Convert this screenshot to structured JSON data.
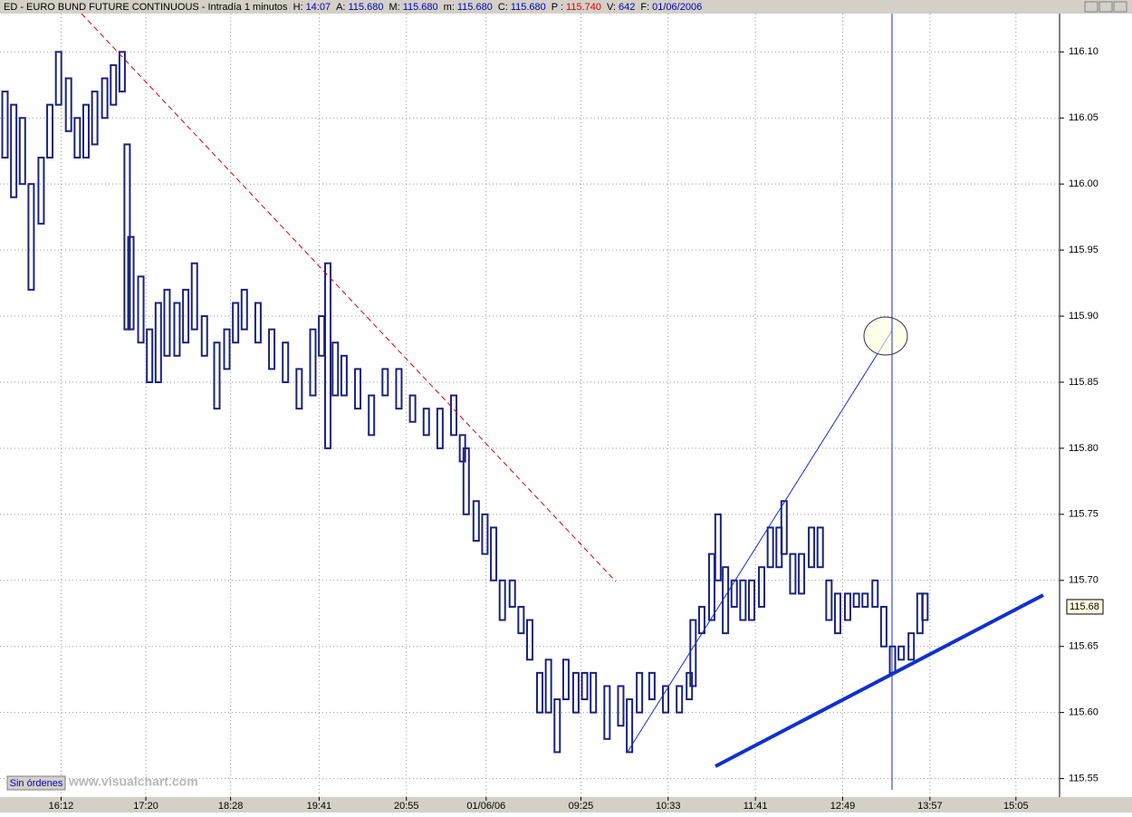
{
  "chart_data": {
    "type": "hilo",
    "title": "ED - EURO BUND FUTURE CONTINUOUS - Intradía 1 minutos",
    "header_fields": [
      {
        "label": "H:",
        "value": "14:07"
      },
      {
        "label": "A:",
        "value": "115.680"
      },
      {
        "label": "M:",
        "value": "115.680"
      },
      {
        "label": "m:",
        "value": "115.680"
      },
      {
        "label": "C:",
        "value": "115.680"
      },
      {
        "label": "P :",
        "value": "115.740"
      },
      {
        "label": "V:",
        "value": "642"
      },
      {
        "label": "F:",
        "value": "01/06/2006"
      }
    ],
    "color": "#1a237e",
    "x": [
      4,
      11,
      18,
      25,
      33,
      40,
      47,
      55,
      62,
      69,
      76,
      84,
      91,
      98,
      102,
      105,
      113,
      120,
      127,
      134,
      142,
      149,
      156,
      164,
      174,
      182,
      189,
      196,
      207,
      218,
      229,
      240,
      251,
      258,
      263,
      269,
      276,
      287,
      298,
      309,
      320,
      331,
      342,
      353,
      364,
      371,
      374,
      382,
      389,
      396,
      403,
      411,
      418,
      425,
      433,
      440,
      447,
      454,
      462,
      469,
      476,
      487,
      498,
      505,
      513,
      523,
      534,
      545,
      553,
      556,
      563,
      571,
      576,
      582,
      589,
      596,
      603,
      611,
      618,
      625,
      629,
      636,
      643,
      651,
      658,
      665,
      672,
      680,
      687,
      694,
      702,
      709,
      716,
      723,
      731,
      738,
      742
    ],
    "high": [
      116.07,
      116.06,
      116.05,
      116.0,
      116.02,
      116.06,
      116.1,
      116.08,
      116.05,
      116.06,
      116.07,
      116.08,
      116.09,
      116.1,
      116.03,
      115.96,
      115.93,
      115.89,
      115.91,
      115.92,
      115.91,
      115.92,
      115.94,
      115.9,
      115.88,
      115.89,
      115.91,
      115.92,
      115.91,
      115.89,
      115.88,
      115.86,
      115.89,
      115.9,
      115.94,
      115.88,
      115.87,
      115.86,
      115.84,
      115.86,
      115.86,
      115.84,
      115.83,
      115.83,
      115.84,
      115.81,
      115.8,
      115.76,
      115.75,
      115.74,
      115.7,
      115.7,
      115.68,
      115.67,
      115.63,
      115.64,
      115.61,
      115.64,
      115.63,
      115.63,
      115.63,
      115.62,
      115.62,
      115.61,
      115.63,
      115.63,
      115.62,
      115.62,
      115.63,
      115.67,
      115.68,
      115.72,
      115.75,
      115.71,
      115.7,
      115.7,
      115.7,
      115.71,
      115.74,
      115.74,
      115.76,
      115.72,
      115.72,
      115.74,
      115.74,
      115.7,
      115.69,
      115.69,
      115.69,
      115.69,
      115.7,
      115.68,
      115.65,
      115.65,
      115.66,
      115.69,
      115.69
    ],
    "low": [
      116.02,
      115.99,
      116.0,
      115.92,
      115.97,
      116.02,
      116.06,
      116.04,
      116.02,
      116.02,
      116.03,
      116.05,
      116.06,
      116.07,
      115.89,
      115.89,
      115.88,
      115.85,
      115.85,
      115.87,
      115.87,
      115.88,
      115.89,
      115.87,
      115.83,
      115.86,
      115.88,
      115.89,
      115.88,
      115.86,
      115.85,
      115.83,
      115.84,
      115.87,
      115.8,
      115.84,
      115.84,
      115.83,
      115.81,
      115.84,
      115.83,
      115.82,
      115.81,
      115.8,
      115.81,
      115.79,
      115.75,
      115.73,
      115.72,
      115.7,
      115.67,
      115.68,
      115.66,
      115.64,
      115.6,
      115.6,
      115.57,
      115.61,
      115.6,
      115.61,
      115.6,
      115.58,
      115.59,
      115.57,
      115.6,
      115.61,
      115.6,
      115.6,
      115.61,
      115.62,
      115.66,
      115.67,
      115.7,
      115.66,
      115.68,
      115.67,
      115.67,
      115.68,
      115.71,
      115.71,
      115.72,
      115.69,
      115.69,
      115.71,
      115.71,
      115.67,
      115.66,
      115.67,
      115.68,
      115.68,
      115.68,
      115.65,
      115.63,
      115.64,
      115.64,
      115.66,
      115.67
    ],
    "xlim": [
      0,
      850
    ],
    "xticks": [
      {
        "value": 49,
        "label": "16:12"
      },
      {
        "value": 117,
        "label": "17:20"
      },
      {
        "value": 185,
        "label": "18:28"
      },
      {
        "value": 256,
        "label": "19:41"
      },
      {
        "value": 326,
        "label": "20:55"
      },
      {
        "value": 390,
        "label": "01/06/06"
      },
      {
        "value": 466,
        "label": "09:25"
      },
      {
        "value": 536,
        "label": "10:33"
      },
      {
        "value": 606,
        "label": "11:41"
      },
      {
        "value": 676,
        "label": "12:49"
      },
      {
        "value": 746,
        "label": "13:57"
      },
      {
        "value": 815,
        "label": "15:05"
      }
    ],
    "ylim": [
      115.536,
      116.129
    ],
    "yticks": [
      {
        "value": 115.55,
        "label": "115.55"
      },
      {
        "value": 115.6,
        "label": "115.60"
      },
      115.65,
      {
        "value": 115.7,
        "label": "115.70"
      },
      115.75,
      {
        "value": 115.8,
        "label": "115.80"
      },
      115.85,
      {
        "value": 115.9,
        "label": "115.90"
      },
      115.95,
      {
        "value": 116.0,
        "label": "116.00"
      },
      116.05,
      {
        "value": 116.1,
        "label": "116.10"
      }
    ],
    "grid": true,
    "last_price": 115.68,
    "status_button": "Sin órdenes",
    "watermark": "www.visualchart.com"
  }
}
